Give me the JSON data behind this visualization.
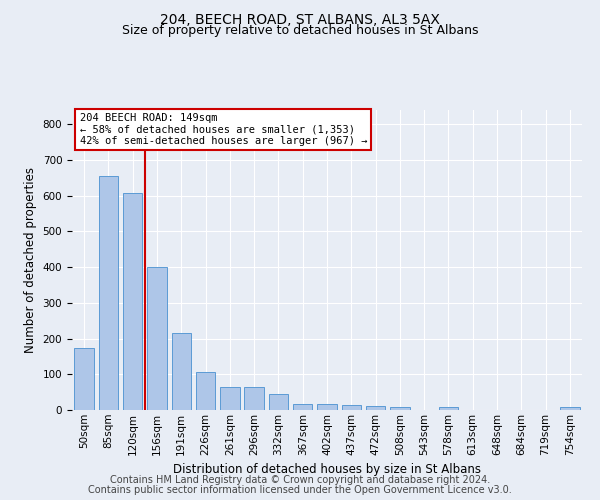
{
  "title_line1": "204, BEECH ROAD, ST ALBANS, AL3 5AX",
  "title_line2": "Size of property relative to detached houses in St Albans",
  "xlabel": "Distribution of detached houses by size in St Albans",
  "ylabel": "Number of detached properties",
  "footer_line1": "Contains HM Land Registry data © Crown copyright and database right 2024.",
  "footer_line2": "Contains public sector information licensed under the Open Government Licence v3.0.",
  "categories": [
    "50sqm",
    "85sqm",
    "120sqm",
    "156sqm",
    "191sqm",
    "226sqm",
    "261sqm",
    "296sqm",
    "332sqm",
    "367sqm",
    "402sqm",
    "437sqm",
    "472sqm",
    "508sqm",
    "543sqm",
    "578sqm",
    "613sqm",
    "648sqm",
    "684sqm",
    "719sqm",
    "754sqm"
  ],
  "values": [
    175,
    655,
    608,
    400,
    215,
    107,
    65,
    65,
    44,
    18,
    18,
    15,
    10,
    8,
    0,
    8,
    0,
    0,
    0,
    0,
    8
  ],
  "bar_color": "#aec6e8",
  "bar_edge_color": "#5b9bd5",
  "bar_width": 0.8,
  "vline_color": "#cc0000",
  "annotation_text_line1": "204 BEECH ROAD: 149sqm",
  "annotation_text_line2": "← 58% of detached houses are smaller (1,353)",
  "annotation_text_line3": "42% of semi-detached houses are larger (967) →",
  "annotation_box_facecolor": "#ffffff",
  "annotation_box_edgecolor": "#cc0000",
  "ylim": [
    0,
    840
  ],
  "yticks": [
    0,
    100,
    200,
    300,
    400,
    500,
    600,
    700,
    800
  ],
  "bg_color": "#e8edf5",
  "grid_color": "#ffffff",
  "title1_fontsize": 10,
  "title2_fontsize": 9,
  "xlabel_fontsize": 8.5,
  "ylabel_fontsize": 8.5,
  "tick_fontsize": 7.5,
  "annotation_fontsize": 7.5,
  "footer_fontsize": 7
}
